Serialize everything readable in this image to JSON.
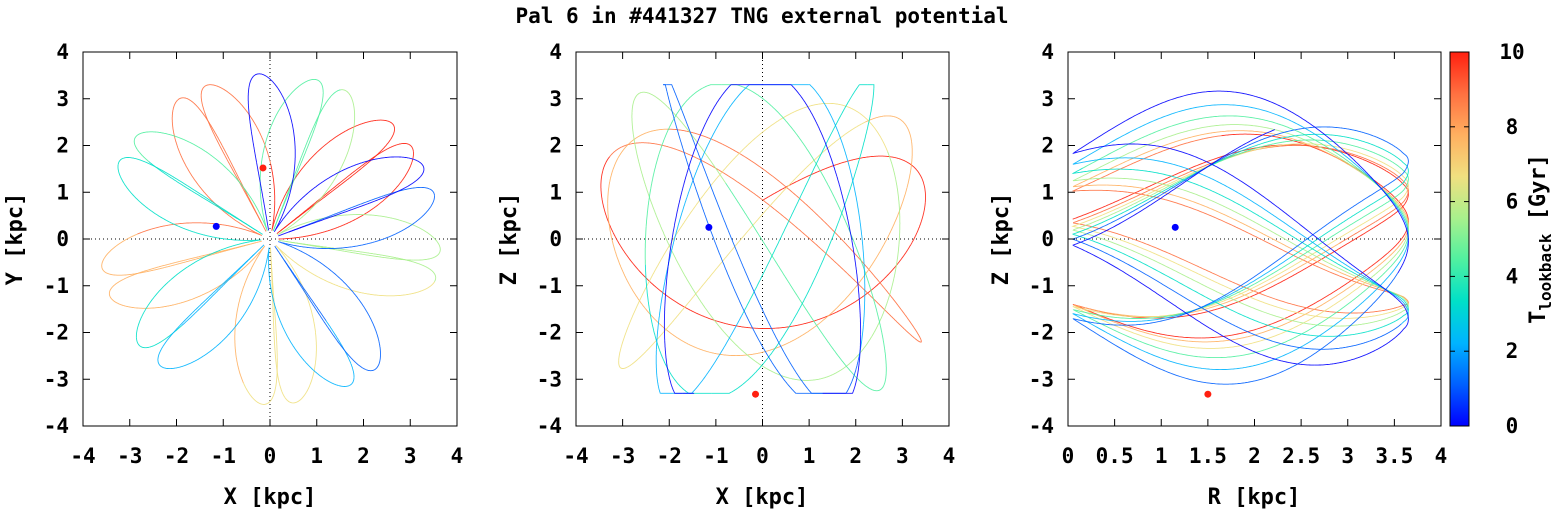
{
  "title": "Pal 6 in #441327 TNG external potential",
  "colorbar": {
    "label_main": "T",
    "label_sub": "lookback",
    "label_unit": " [Gyr]",
    "range": [
      0,
      10
    ],
    "ticks": [
      "0",
      "2",
      "4",
      "6",
      "8",
      "10"
    ],
    "colors": [
      "#0000ff",
      "#0060ff",
      "#00b4ff",
      "#00e0c8",
      "#50f0a0",
      "#a8f08c",
      "#f0e080",
      "#ffb060",
      "#ff7040",
      "#ff2010"
    ]
  },
  "chart_data": [
    {
      "type": "scatter",
      "xlabel": "X [kpc]",
      "ylabel": "Y [kpc]",
      "xlim": [
        -4,
        4
      ],
      "ylim": [
        -4,
        4
      ],
      "xticks": [
        "-4",
        "-3",
        "-2",
        "-1",
        "0",
        "1",
        "2",
        "3",
        "4"
      ],
      "yticks": [
        "-4",
        "-3",
        "-2",
        "-1",
        "0",
        "1",
        "2",
        "3",
        "4"
      ],
      "orbit": "rosette",
      "rmax": 3.65,
      "markers": [
        {
          "name": "present",
          "x": -1.15,
          "y": 0.27,
          "color": "#0000ff"
        },
        {
          "name": "start",
          "x": -0.15,
          "y": 1.52,
          "color": "#ff2010"
        }
      ]
    },
    {
      "type": "scatter",
      "xlabel": "X [kpc]",
      "ylabel": "Z [kpc]",
      "xlim": [
        -4,
        4
      ],
      "ylim": [
        -4,
        4
      ],
      "xticks": [
        "-4",
        "-3",
        "-2",
        "-1",
        "0",
        "1",
        "2",
        "3",
        "4"
      ],
      "yticks": [
        "-4",
        "-3",
        "-2",
        "-1",
        "0",
        "1",
        "2",
        "3",
        "4"
      ],
      "orbit": "lissajous",
      "xamp": 3.5,
      "zamp": 2.3,
      "markers": [
        {
          "name": "present",
          "x": -1.15,
          "y": 0.25,
          "color": "#0000ff"
        },
        {
          "name": "start",
          "x": -0.15,
          "y": -3.32,
          "color": "#ff2010"
        }
      ]
    },
    {
      "type": "scatter",
      "xlabel": "R [kpc]",
      "ylabel": "Z [kpc]",
      "xlim": [
        0,
        4
      ],
      "ylim": [
        -4,
        4
      ],
      "xticks": [
        "0",
        "0.5",
        "1",
        "1.5",
        "2",
        "2.5",
        "3",
        "3.5",
        "4"
      ],
      "yticks": [
        "-4",
        "-3",
        "-2",
        "-1",
        "0",
        "1",
        "2",
        "3",
        "4"
      ],
      "orbit": "meridional",
      "rmax": 3.65,
      "zamp": 1.4,
      "markers": [
        {
          "name": "present",
          "x": 1.15,
          "y": 0.25,
          "color": "#0000ff"
        },
        {
          "name": "start",
          "x": 1.5,
          "y": -3.32,
          "color": "#ff2010"
        }
      ]
    }
  ]
}
